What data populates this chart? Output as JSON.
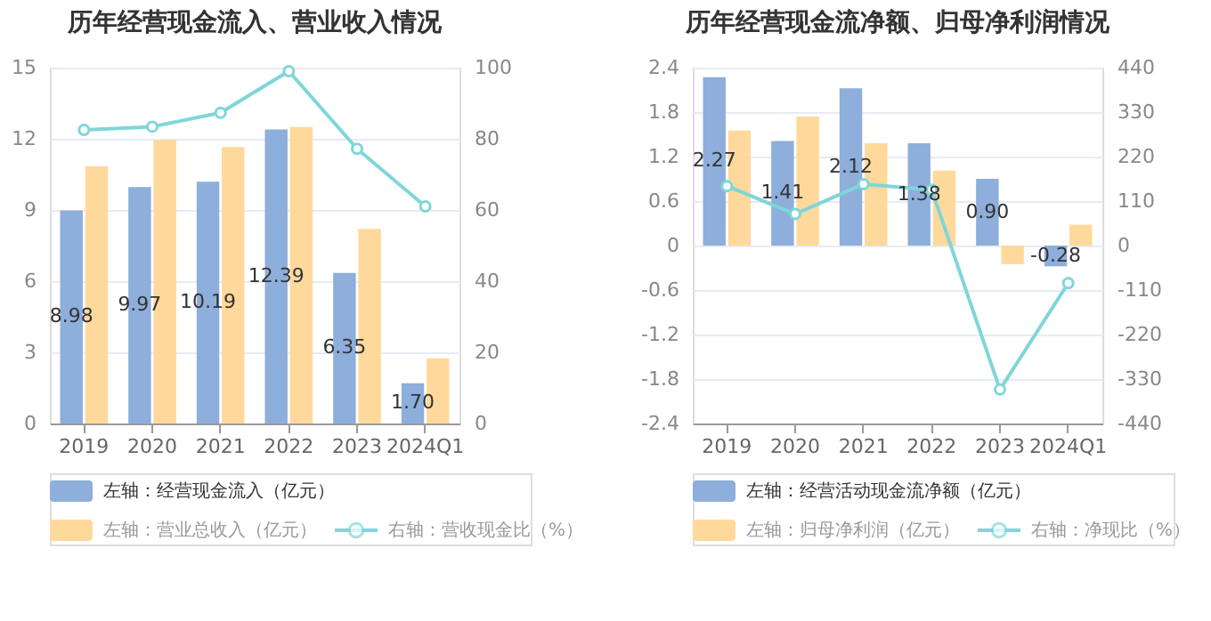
{
  "chart_data": [
    {
      "type": "bar",
      "title": "历年经营现金流入、营业收入情况",
      "categories": [
        "2019",
        "2020",
        "2021",
        "2022",
        "2023",
        "2024Q1"
      ],
      "series": [
        {
          "name": "左轴：经营现金流入（亿元）",
          "color": "#8eaedb",
          "values": [
            8.98,
            9.97,
            10.19,
            12.39,
            6.35,
            1.7
          ],
          "value_labels": [
            "8.98",
            "9.97",
            "10.19",
            "12.39",
            "6.35",
            "1.70"
          ]
        },
        {
          "name": "左轴：营业总收入（亿元）",
          "color": "#ffd99b",
          "values": [
            10.85,
            11.95,
            11.65,
            12.5,
            8.2,
            2.75
          ]
        },
        {
          "name": "右轴：营收现金比（%）",
          "type": "line",
          "axis": "y2",
          "color": "#7fd6d9",
          "values": [
            82.5,
            83.4,
            87.3,
            99,
            77.2,
            61
          ]
        }
      ],
      "ylim": [
        0,
        15
      ],
      "yticks": [
        0,
        3,
        6,
        9,
        12,
        15
      ],
      "y2lim": [
        0,
        100
      ],
      "y2ticks": [
        0,
        20,
        40,
        60,
        80,
        100
      ],
      "grid": "y",
      "legend": "bottom",
      "marker": "circle"
    },
    {
      "type": "bar",
      "title": "历年经营现金流净额、归母净利润情况",
      "categories": [
        "2019",
        "2020",
        "2021",
        "2022",
        "2023",
        "2024Q1"
      ],
      "series": [
        {
          "name": "左轴：经营活动现金流净额（亿元）",
          "color": "#8eaedb",
          "values": [
            2.27,
            1.41,
            2.12,
            1.38,
            0.9,
            -0.28
          ],
          "value_labels": [
            "2.27",
            "1.41",
            "2.12",
            "1.38",
            "0.90",
            "-0.28"
          ]
        },
        {
          "name": "左轴：归母净利润（亿元）",
          "color": "#ffd99b",
          "values": [
            1.55,
            1.74,
            1.38,
            1.01,
            -0.25,
            0.28
          ]
        },
        {
          "name": "右轴：净现比（%）",
          "type": "line",
          "axis": "y2",
          "color": "#7fd6d9",
          "values": [
            147,
            78,
            152,
            138,
            -356,
            -93
          ]
        }
      ],
      "ylim": [
        -2.4,
        2.4
      ],
      "yticks": [
        -2.4,
        -1.8,
        -1.2,
        -0.6,
        0,
        0.6,
        1.2,
        1.8,
        2.4
      ],
      "y2lim": [
        -440,
        440
      ],
      "y2ticks": [
        -440,
        -330,
        -220,
        -110,
        0,
        110,
        220,
        330,
        440
      ],
      "grid": "y",
      "legend": "bottom",
      "marker": "circle"
    }
  ]
}
